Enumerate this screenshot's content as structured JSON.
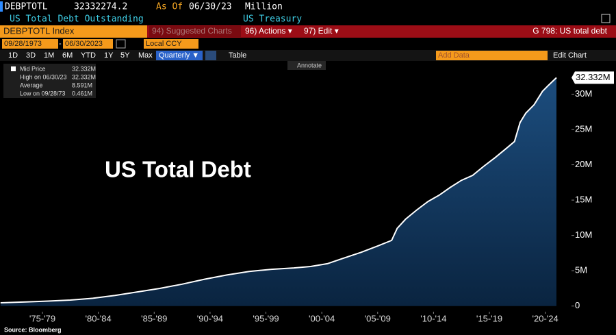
{
  "header": {
    "ticker": "DEBPTOTL",
    "last_value": "32332274.2",
    "as_of_label": "As Of",
    "as_of_date": "06/30/23",
    "units": "Million",
    "description": "US Total Debt Outstanding",
    "source_name": "US Treasury"
  },
  "toolbar": {
    "security": "DEBPTOTL Index",
    "suggested": "94) Suggested Charts",
    "actions": "96) Actions ▾",
    "edit": "97) Edit ▾",
    "function": "G 798: US total debt",
    "start_date": "09/28/1973",
    "date_separator": "-",
    "end_date": "06/30/2023",
    "currency": "Local CCY",
    "periods": [
      "1D",
      "3D",
      "1M",
      "6M",
      "YTD",
      "1Y",
      "5Y",
      "Max"
    ],
    "frequency": "Quarterly ▼",
    "table": "Table",
    "add_data": "Add Data",
    "edit_chart": "Edit Chart"
  },
  "annotate": "Annotate",
  "legend_box": {
    "rows": [
      [
        "Mid Price",
        "32.332M"
      ],
      [
        "High on 06/30/23",
        "32.332M"
      ],
      [
        "Average",
        "8.591M"
      ],
      [
        "Low on 09/28/73",
        "0.461M"
      ]
    ]
  },
  "chart_data": {
    "type": "area",
    "title": "US Total Debt",
    "color": "#ffffff",
    "x": [
      1973.75,
      1976,
      1978,
      1980,
      1982,
      1984,
      1986,
      1988,
      1990,
      1992,
      1994,
      1996,
      1998,
      2000,
      2001.5,
      2003,
      2004.5,
      2006,
      2007.5,
      2008.75,
      2009.25,
      2010,
      2011,
      2012,
      2013,
      2014,
      2015,
      2016,
      2017,
      2018,
      2019,
      2019.75,
      2020.25,
      2020.75,
      2021.5,
      2022.25,
      2022.75,
      2023.5
    ],
    "values": [
      461000,
      580000,
      700000,
      850000,
      1100000,
      1500000,
      2000000,
      2500000,
      3100000,
      3800000,
      4400000,
      4900000,
      5200000,
      5400000,
      5600000,
      6000000,
      6800000,
      7600000,
      8500000,
      9300000,
      11000000,
      12300000,
      13600000,
      14800000,
      15700000,
      16800000,
      17800000,
      18500000,
      19800000,
      21000000,
      22300000,
      23300000,
      26000000,
      27300000,
      28500000,
      30400000,
      31200000,
      32332274.2
    ],
    "last_value_label": "32.332M",
    "xlim": [
      1973.7,
      2024.85
    ],
    "xticks": [
      {
        "value": 1977.5,
        "label": "'75-'79"
      },
      {
        "value": 1982.5,
        "label": "'80-'84"
      },
      {
        "value": 1987.5,
        "label": "'85-'89"
      },
      {
        "value": 1992.5,
        "label": "'90-'94"
      },
      {
        "value": 1997.5,
        "label": "'95-'99"
      },
      {
        "value": 2002.5,
        "label": "'00-'04"
      },
      {
        "value": 2007.5,
        "label": "'05-'09"
      },
      {
        "value": 2012.5,
        "label": "'10-'14"
      },
      {
        "value": 2017.5,
        "label": "'15-'19"
      },
      {
        "value": 2022.5,
        "label": "'20-'24"
      }
    ],
    "ylim": [
      -800000,
      34600000
    ],
    "yticks": [
      0,
      {
        "value": 5000000,
        "label": "5M"
      },
      {
        "value": 10000000,
        "label": "10M"
      },
      {
        "value": 15000000,
        "label": "15M"
      },
      {
        "value": 20000000,
        "label": "20M"
      },
      {
        "value": 25000000,
        "label": "25M"
      },
      {
        "value": 30000000,
        "label": "30M"
      }
    ],
    "grid": false
  },
  "source": "Source: Bloomberg"
}
